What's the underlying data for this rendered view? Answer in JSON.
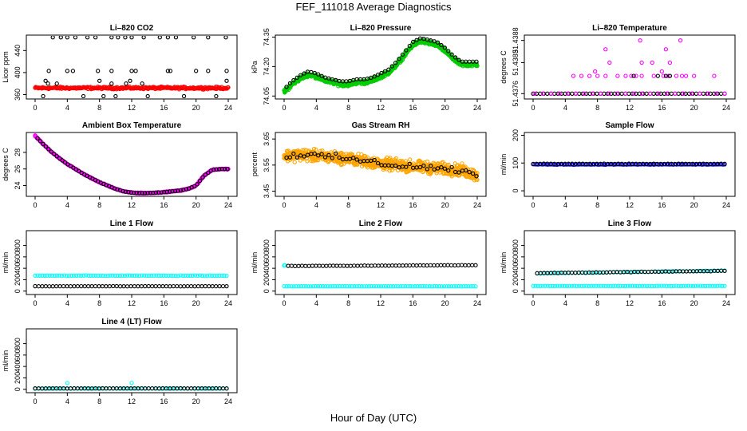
{
  "figure": {
    "title": "FEF_111018  Average Diagnostics",
    "xlabel": "Hour of Day (UTC)"
  },
  "chart_data": [
    {
      "id": "co2",
      "type": "scatter",
      "title": "Li–820 CO2",
      "ylabel": "Licor ppm",
      "xlim": [
        0,
        24
      ],
      "ylim": [
        352,
        468
      ],
      "yticks": [
        360,
        400,
        440
      ],
      "xticks": [
        0,
        4,
        8,
        12,
        16,
        20,
        24
      ],
      "series": [
        {
          "name": "band",
          "color": "#ff0000",
          "kind": "band",
          "base": 372,
          "noise": 3,
          "count": 300
        },
        {
          "name": "points",
          "color": "#000000",
          "kind": "scatter",
          "x": [
            2.2,
            3.2,
            4.0,
            5.0,
            6.5,
            7.5,
            9.5,
            10.3,
            11.2,
            12.0,
            13.5,
            15.5,
            16.5,
            17.5,
            19.7,
            21.5,
            23.7,
            1.7,
            4.0,
            4.7,
            7.8,
            9.5,
            12.0,
            12.5,
            16.5,
            16.8,
            20.0,
            21.5,
            23.8,
            1.3,
            8.0,
            11.8,
            23.8,
            1.6,
            2.7,
            9.5,
            11.3,
            13.3,
            1.0,
            6.0,
            8.5,
            10.0,
            14.0,
            18.5,
            22.5
          ],
          "y": [
            464,
            464,
            464,
            464,
            464,
            464,
            464,
            464,
            464,
            464,
            464,
            464,
            464,
            464,
            464,
            464,
            464,
            403,
            403,
            403,
            403,
            403,
            403,
            403,
            403,
            403,
            403,
            403,
            403,
            385,
            385,
            385,
            385,
            380,
            380,
            380,
            380,
            380,
            357,
            357,
            357,
            357,
            357,
            357,
            357
          ]
        }
      ]
    },
    {
      "id": "pressure",
      "type": "scatter",
      "title": "Li–820 Pressure",
      "ylabel": "kPa",
      "xlim": [
        0,
        24
      ],
      "ylim": [
        74.035,
        74.36
      ],
      "yticks": [
        74.05,
        74.2,
        74.35
      ],
      "yticklabels": [
        "74.05",
        "74.20",
        "74.35"
      ],
      "xticks": [
        0,
        4,
        8,
        12,
        16,
        20,
        24
      ],
      "profile_x": [
        0,
        1,
        2,
        3,
        4,
        5,
        6,
        7,
        8,
        9,
        10,
        11,
        12,
        13,
        14,
        15,
        16,
        17,
        18,
        19,
        20,
        21,
        22,
        23,
        24
      ],
      "profile_y": [
        74.07,
        74.11,
        74.14,
        74.16,
        74.15,
        74.13,
        74.12,
        74.11,
        74.11,
        74.12,
        74.12,
        74.13,
        74.15,
        74.17,
        74.21,
        74.26,
        74.31,
        74.33,
        74.32,
        74.31,
        74.28,
        74.24,
        74.21,
        74.21,
        74.21
      ],
      "series": [
        {
          "name": "band",
          "color": "#00cc00",
          "kind": "band",
          "noise": 0.014,
          "count": 340
        },
        {
          "name": "points",
          "color": "#000000",
          "kind": "trace",
          "offset": 0.015,
          "count": 55
        }
      ]
    },
    {
      "id": "licor_temp",
      "type": "scatter",
      "title": "Li–820 Temperature",
      "ylabel": "degrees C",
      "xlim": [
        0,
        24
      ],
      "ylim": [
        51.43748,
        51.43892
      ],
      "yticks": [
        51.4376,
        51.4383,
        51.4388
      ],
      "yticklabels": [
        "51.4376",
        "51.4383",
        "51.4388"
      ],
      "xticks": [
        0,
        4,
        8,
        12,
        16,
        20,
        24
      ],
      "series": [
        {
          "name": "base",
          "color": "#000000",
          "kind": "row",
          "y": 51.4376,
          "count": 55
        },
        {
          "name": "base",
          "color": "#ff00ff",
          "kind": "row",
          "y": 51.4376,
          "count": 24,
          "offset": 0.2
        },
        {
          "name": "points",
          "color": "#ff00ff",
          "kind": "scatter",
          "x": [
            5.0,
            6.0,
            7.0,
            8.0,
            9.0,
            10.5,
            11.5,
            12.2,
            12.8,
            13.5,
            15.0,
            16.2,
            16.8,
            17.8,
            18.5,
            19.0,
            20.0,
            22.5,
            7.7,
            16.0,
            9.5,
            13.5,
            14.8,
            17.0,
            9.0,
            16.5,
            13.3,
            18.3
          ],
          "y": [
            51.438,
            51.438,
            51.438,
            51.438,
            51.438,
            51.438,
            51.438,
            51.438,
            51.438,
            51.438,
            51.438,
            51.438,
            51.438,
            51.438,
            51.438,
            51.438,
            51.438,
            51.438,
            51.4381,
            51.4381,
            51.4383,
            51.4383,
            51.4383,
            51.4383,
            51.4386,
            51.4386,
            51.4388,
            51.4388
          ]
        },
        {
          "name": "points",
          "color": "#000000",
          "kind": "scatter",
          "x": [
            12.5,
            15.5,
            16.5,
            17.0
          ],
          "y": [
            51.438,
            51.438,
            51.438,
            51.438
          ]
        }
      ]
    },
    {
      "id": "box_temp",
      "type": "line",
      "title": "Ambient Box Temperature",
      "ylabel": "degrees C",
      "xlim": [
        0,
        24
      ],
      "ylim": [
        22.7,
        30.4
      ],
      "yticks": [
        24,
        26,
        28
      ],
      "xticks": [
        0,
        4,
        8,
        12,
        16,
        20,
        24
      ],
      "profile_x": [
        0,
        1,
        2,
        3,
        4,
        5,
        6,
        7,
        8,
        9,
        10,
        11,
        12,
        13,
        14,
        15,
        16,
        17,
        18,
        19,
        20,
        21,
        22,
        23,
        24
      ],
      "profile_y": [
        30.0,
        29.0,
        28.1,
        27.3,
        26.6,
        26.0,
        25.4,
        24.9,
        24.4,
        24.0,
        23.6,
        23.3,
        23.15,
        23.1,
        23.1,
        23.15,
        23.2,
        23.3,
        23.4,
        23.6,
        24.0,
        25.2,
        25.9,
        26.0,
        26.0
      ],
      "series": [
        {
          "name": "band",
          "color": "#ff00ff",
          "kind": "band",
          "noise": 0.08,
          "count": 240
        },
        {
          "name": "points",
          "color": "#000000",
          "kind": "trace",
          "offset": 0,
          "count": 70
        }
      ]
    },
    {
      "id": "rh",
      "type": "scatter",
      "title": "Gas Stream RH",
      "ylabel": "percent",
      "xlim": [
        0,
        24
      ],
      "ylim": [
        3.43,
        3.675
      ],
      "yticks": [
        3.45,
        3.55,
        3.65
      ],
      "yticklabels": [
        "3.45",
        "3.55",
        "3.65"
      ],
      "xticks": [
        0,
        4,
        8,
        12,
        16,
        20,
        24
      ],
      "profile_x": [
        0,
        2,
        4,
        6,
        8,
        10,
        12,
        14,
        16,
        18,
        20,
        22,
        24
      ],
      "profile_y": [
        3.585,
        3.59,
        3.585,
        3.58,
        3.575,
        3.565,
        3.555,
        3.55,
        3.545,
        3.54,
        3.535,
        3.53,
        3.51
      ],
      "series": [
        {
          "name": "band",
          "color": "#ffa500",
          "kind": "band",
          "noise": 0.032,
          "count": 420
        },
        {
          "name": "points",
          "color": "#000000",
          "kind": "trace",
          "offset": 0,
          "noise": 0.018,
          "count": 55
        }
      ]
    },
    {
      "id": "sample_flow",
      "type": "scatter",
      "title": "Sample Flow",
      "ylabel": "ml/min",
      "xlim": [
        0,
        24
      ],
      "ylim": [
        -20,
        210
      ],
      "yticks": [
        0,
        100,
        200
      ],
      "xticks": [
        0,
        4,
        8,
        12,
        16,
        20,
        24
      ],
      "series": [
        {
          "name": "band",
          "color": "#0000ff",
          "kind": "row",
          "y": 95,
          "count": 120,
          "noise": 1.5
        },
        {
          "name": "points",
          "color": "#000000",
          "kind": "row",
          "y": 97,
          "count": 55,
          "noise": 1
        }
      ]
    },
    {
      "id": "line1",
      "type": "scatter",
      "title": "Line 1 Flow",
      "ylabel": "ml/min",
      "xlim": [
        0,
        24
      ],
      "ylim": [
        -60,
        1060
      ],
      "yticks": [
        0,
        200,
        400,
        600,
        800
      ],
      "xticks": [
        0,
        4,
        8,
        12,
        16,
        20,
        24
      ],
      "series": [
        {
          "name": "cyan",
          "color": "#00ffff",
          "kind": "row",
          "y": 270,
          "count": 80,
          "noise": 6
        },
        {
          "name": "black",
          "color": "#000000",
          "kind": "row",
          "y": 85,
          "count": 55,
          "noise": 2
        }
      ]
    },
    {
      "id": "line2",
      "type": "scatter",
      "title": "Line 2 Flow",
      "ylabel": "ml/min",
      "xlim": [
        0,
        24
      ],
      "ylim": [
        -60,
        1060
      ],
      "yticks": [
        0,
        200,
        400,
        600,
        800
      ],
      "xticks": [
        0,
        4,
        8,
        12,
        16,
        20,
        24
      ],
      "series": [
        {
          "name": "cyan",
          "color": "#00ffff",
          "kind": "row",
          "y": 85,
          "count": 80,
          "noise": 3
        },
        {
          "name": "cyan-start",
          "color": "#00ffff",
          "kind": "scatter",
          "x": [
            0,
            0.1
          ],
          "y": [
            450,
            455
          ]
        },
        {
          "name": "black",
          "color": "#000000",
          "kind": "slope",
          "y0": 440,
          "y1": 455,
          "count": 55,
          "noise": 4
        }
      ]
    },
    {
      "id": "line3",
      "type": "scatter",
      "title": "Line 3 Flow",
      "ylabel": "ml/min",
      "xlim": [
        0,
        24
      ],
      "ylim": [
        -60,
        1060
      ],
      "yticks": [
        0,
        200,
        400,
        600,
        800
      ],
      "xticks": [
        0,
        4,
        8,
        12,
        16,
        20,
        24
      ],
      "series": [
        {
          "name": "cyan",
          "color": "#00ffff",
          "kind": "row",
          "y": 90,
          "count": 80,
          "noise": 3
        },
        {
          "name": "cyan-upper",
          "color": "#00ffff",
          "kind": "slope",
          "y0": 310,
          "y1": 360,
          "count": 60,
          "noise": 6
        },
        {
          "name": "black",
          "color": "#000000",
          "kind": "slope",
          "y0": 315,
          "y1": 355,
          "count": 55,
          "noise": 6
        }
      ]
    },
    {
      "id": "line4",
      "type": "scatter",
      "title": "Line 4 (LT) Flow",
      "ylabel": "ml/min",
      "xlim": [
        0,
        24
      ],
      "ylim": [
        -60,
        1060
      ],
      "yticks": [
        0,
        200,
        400,
        600,
        800
      ],
      "xticks": [
        0,
        4,
        8,
        12,
        16,
        20,
        24
      ],
      "series": [
        {
          "name": "cyan",
          "color": "#00ffff",
          "kind": "row",
          "y": 12,
          "count": 60,
          "noise": 2
        },
        {
          "name": "cyan-spikes",
          "color": "#00ffff",
          "kind": "scatter",
          "x": [
            0,
            4,
            12
          ],
          "y": [
            10,
            110,
            110
          ]
        },
        {
          "name": "black",
          "color": "#000000",
          "kind": "row",
          "y": 15,
          "count": 55,
          "noise": 2
        }
      ]
    }
  ]
}
